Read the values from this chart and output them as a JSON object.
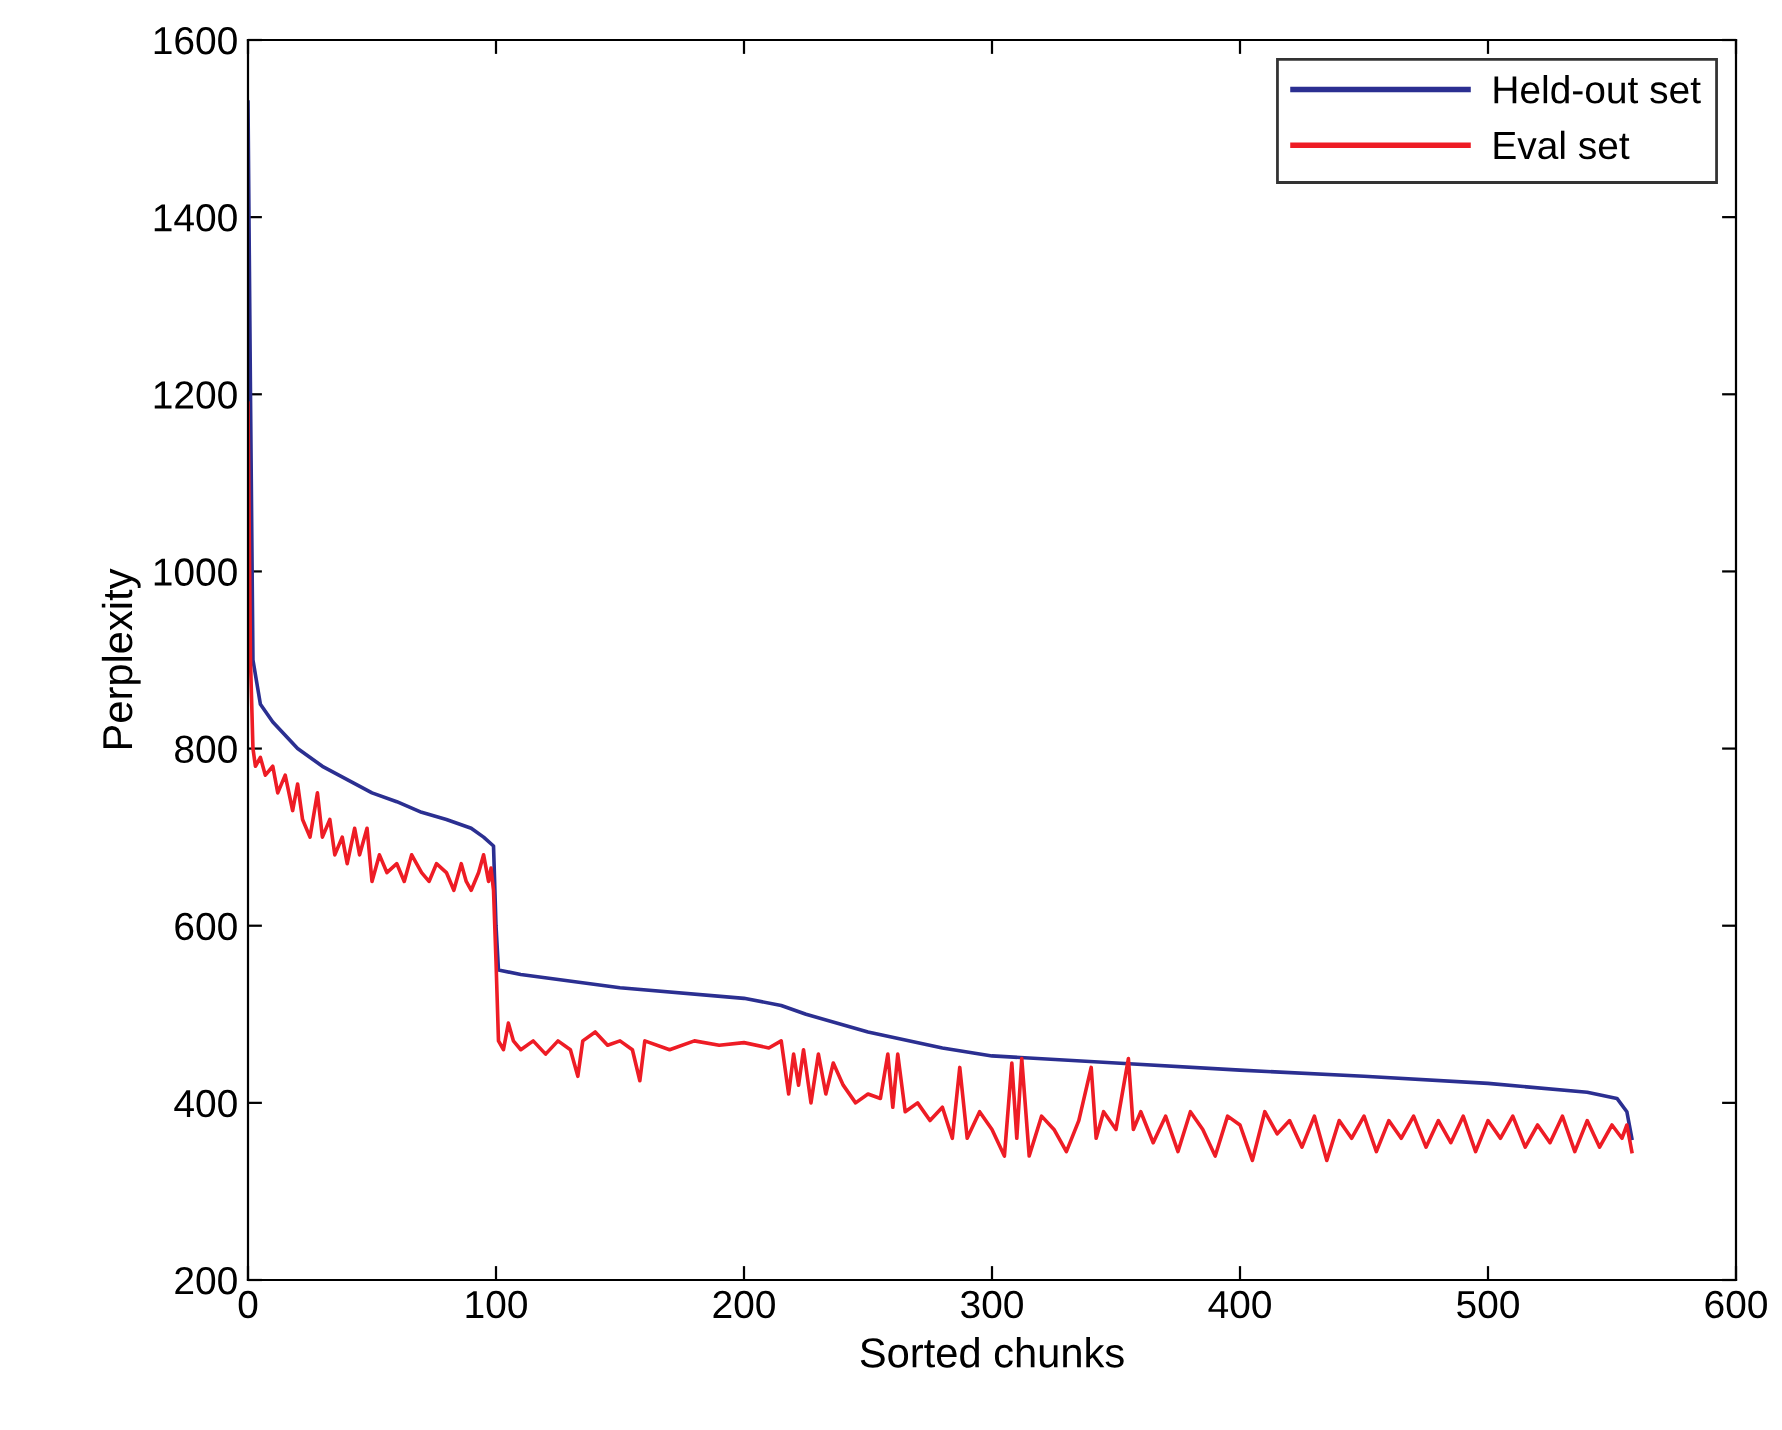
{
  "chart_data": {
    "type": "line",
    "xlabel": "Sorted chunks",
    "ylabel": "Perplexity",
    "xlim": [
      0,
      600
    ],
    "ylim": [
      200,
      1600
    ],
    "xticks": [
      0,
      100,
      200,
      300,
      400,
      500,
      600
    ],
    "yticks": [
      200,
      400,
      600,
      800,
      1000,
      1200,
      1400,
      1600
    ],
    "grid": false,
    "legend": "top right",
    "series": [
      {
        "name": "Held-out set",
        "color": "#2b2f91",
        "x": [
          0,
          1,
          2,
          5,
          10,
          20,
          30,
          40,
          50,
          60,
          70,
          80,
          90,
          95,
          99,
          100,
          101,
          110,
          150,
          200,
          215,
          225,
          250,
          280,
          300,
          350,
          400,
          450,
          500,
          540,
          552,
          556,
          558
        ],
        "values": [
          1530,
          1200,
          900,
          850,
          830,
          800,
          780,
          765,
          750,
          740,
          728,
          720,
          710,
          700,
          690,
          600,
          550,
          545,
          530,
          518,
          510,
          500,
          480,
          462,
          453,
          445,
          437,
          430,
          422,
          412,
          405,
          390,
          360
        ]
      },
      {
        "name": "Eval set",
        "color": "#ee1c25",
        "x": [
          0,
          1,
          2,
          3,
          5,
          7,
          10,
          12,
          15,
          18,
          20,
          22,
          25,
          28,
          30,
          33,
          35,
          38,
          40,
          43,
          45,
          48,
          50,
          53,
          56,
          60,
          63,
          66,
          70,
          73,
          76,
          80,
          83,
          86,
          88,
          90,
          93,
          95,
          97,
          98,
          99,
          100,
          101,
          103,
          105,
          107,
          110,
          115,
          120,
          125,
          130,
          133,
          135,
          140,
          145,
          150,
          155,
          158,
          160,
          170,
          180,
          190,
          200,
          210,
          215,
          218,
          220,
          222,
          224,
          227,
          230,
          233,
          236,
          240,
          245,
          250,
          255,
          258,
          260,
          262,
          265,
          270,
          275,
          280,
          284,
          287,
          290,
          295,
          300,
          305,
          308,
          310,
          312,
          315,
          320,
          325,
          330,
          335,
          340,
          342,
          345,
          350,
          355,
          357,
          360,
          365,
          370,
          375,
          380,
          385,
          390,
          395,
          400,
          405,
          410,
          415,
          420,
          425,
          430,
          435,
          440,
          445,
          450,
          455,
          460,
          465,
          470,
          475,
          480,
          485,
          490,
          495,
          500,
          505,
          510,
          515,
          520,
          525,
          530,
          535,
          540,
          545,
          550,
          554,
          556,
          558
        ],
        "values": [
          1190,
          900,
          800,
          780,
          790,
          770,
          780,
          750,
          770,
          730,
          760,
          720,
          700,
          750,
          700,
          720,
          680,
          700,
          670,
          710,
          680,
          710,
          650,
          680,
          660,
          670,
          650,
          680,
          660,
          650,
          670,
          660,
          640,
          670,
          650,
          640,
          660,
          680,
          650,
          665,
          640,
          560,
          470,
          460,
          490,
          470,
          460,
          470,
          455,
          470,
          460,
          430,
          470,
          480,
          465,
          470,
          460,
          425,
          470,
          460,
          470,
          465,
          468,
          462,
          470,
          410,
          455,
          420,
          460,
          400,
          455,
          410,
          445,
          420,
          400,
          410,
          405,
          455,
          395,
          455,
          390,
          400,
          380,
          395,
          360,
          440,
          360,
          390,
          370,
          340,
          445,
          360,
          450,
          340,
          385,
          370,
          345,
          380,
          440,
          360,
          390,
          370,
          450,
          370,
          390,
          355,
          385,
          345,
          390,
          370,
          340,
          385,
          375,
          335,
          390,
          365,
          380,
          350,
          385,
          335,
          380,
          360,
          385,
          345,
          380,
          360,
          385,
          350,
          380,
          355,
          385,
          345,
          380,
          360,
          385,
          350,
          375,
          355,
          385,
          345,
          380,
          350,
          375,
          360,
          375,
          345
        ]
      }
    ]
  }
}
